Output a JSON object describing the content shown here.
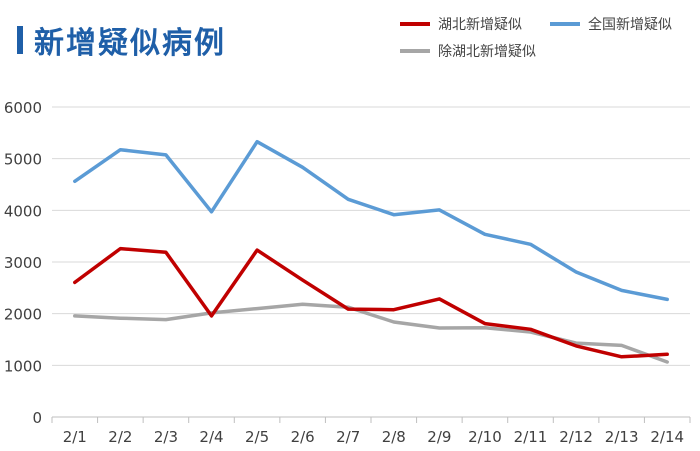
{
  "title": "新增疑似病例",
  "chart_data": {
    "type": "line",
    "title": "新增疑似病例",
    "categories": [
      "2/1",
      "2/2",
      "2/3",
      "2/4",
      "2/5",
      "2/6",
      "2/7",
      "2/8",
      "2/9",
      "2/10",
      "2/11",
      "2/12",
      "2/13",
      "2/14"
    ],
    "series": [
      {
        "name": "湖北新增疑似",
        "color": "#c00000",
        "values": [
          2606,
          3260,
          3187,
          1957,
          3230,
          2649,
          2088,
          2077,
          2286,
          1808,
          1697,
          1377,
          1165,
          1213
        ]
      },
      {
        "name": "全国新增疑似",
        "color": "#5b9bd5",
        "values": [
          4562,
          5173,
          5072,
          3971,
          5328,
          4833,
          4214,
          3916,
          4008,
          3536,
          3342,
          2807,
          2450,
          2277
        ]
      },
      {
        "name": "除湖北新增疑似",
        "color": "#a6a6a6",
        "values": [
          1956,
          1913,
          1885,
          2014,
          2098,
          2184,
          2126,
          1839,
          1722,
          1728,
          1645,
          1430,
          1385,
          1064
        ]
      }
    ],
    "yticks": [
      0,
      1000,
      2000,
      3000,
      4000,
      5000,
      6000
    ],
    "ylim": [
      0,
      6000
    ],
    "grid": true,
    "legend_position": "top-right"
  }
}
